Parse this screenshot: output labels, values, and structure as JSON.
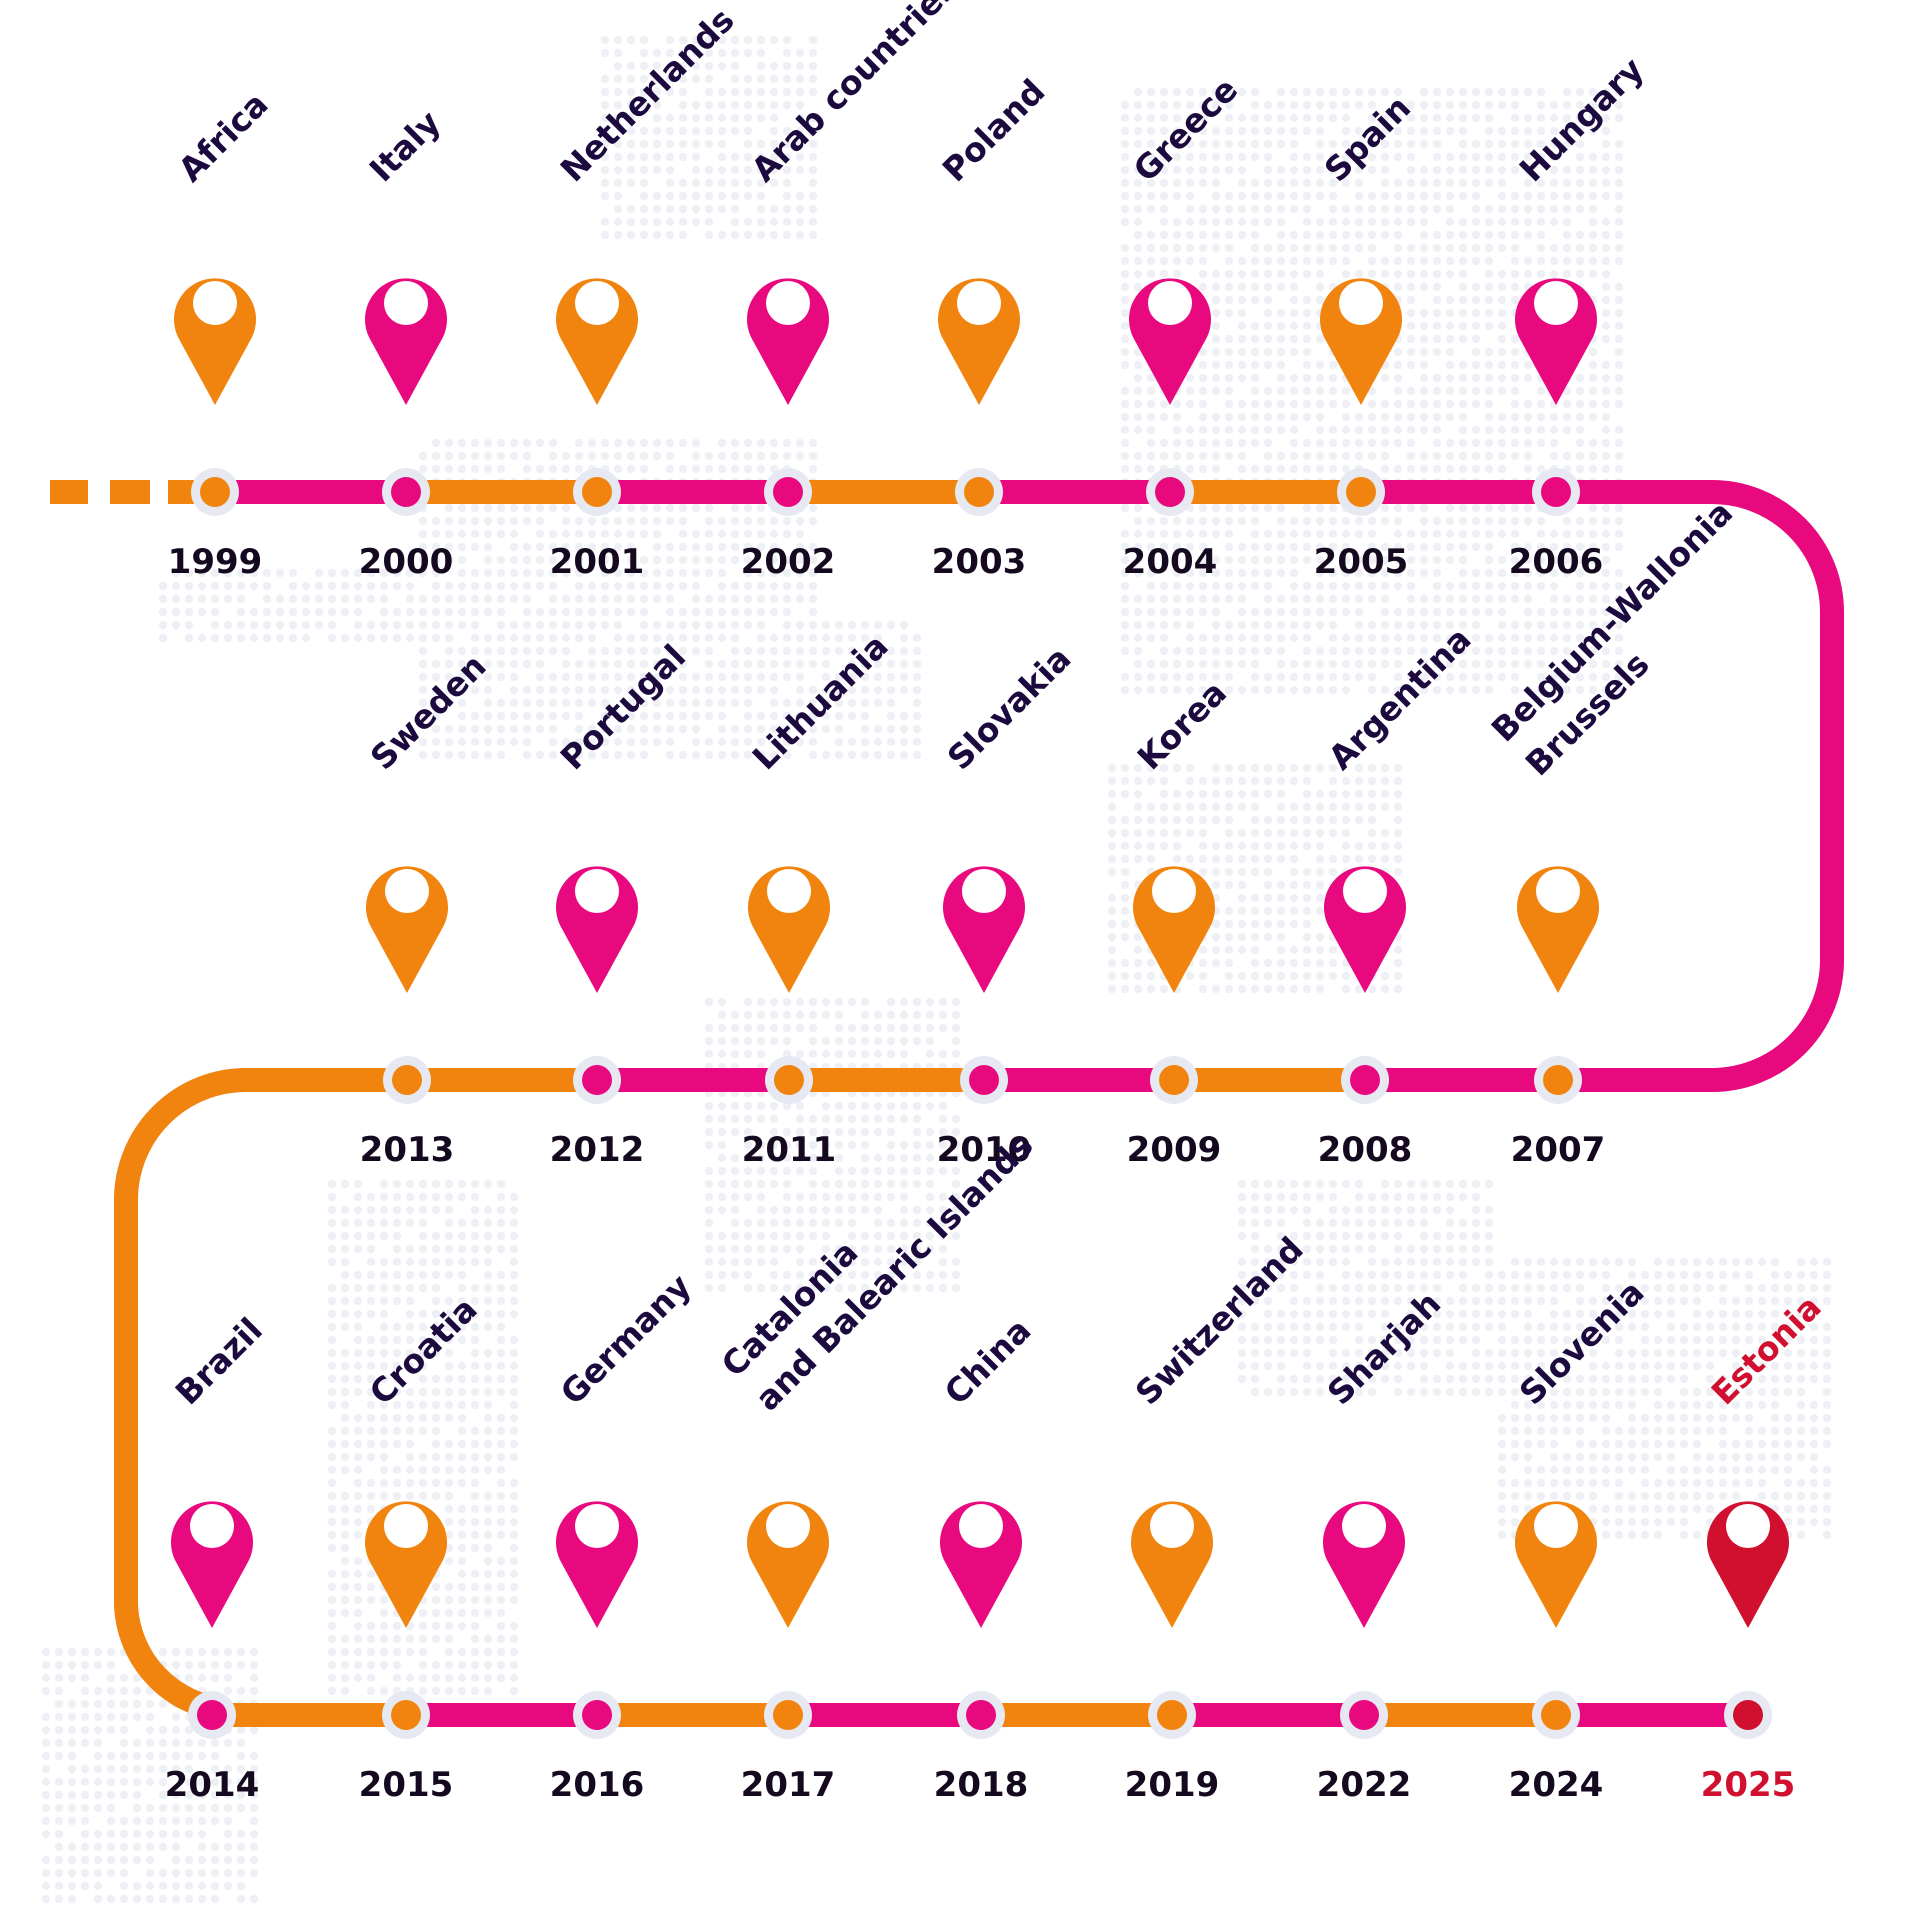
{
  "colors": {
    "orange": "#f0840e",
    "magenta": "#e8097e",
    "red": "#d0102e",
    "node_ring": "#e6e9f2",
    "dots": "#eef0f6",
    "text": "#1c0a3f"
  },
  "timeline": [
    {
      "year": "1999",
      "country": [
        "Africa"
      ],
      "color": "orange"
    },
    {
      "year": "2000",
      "country": [
        "Italy"
      ],
      "color": "magenta"
    },
    {
      "year": "2001",
      "country": [
        "Netherlands"
      ],
      "color": "orange"
    },
    {
      "year": "2002",
      "country": [
        "Arab countries"
      ],
      "color": "magenta"
    },
    {
      "year": "2003",
      "country": [
        "Poland"
      ],
      "color": "orange"
    },
    {
      "year": "2004",
      "country": [
        "Greece"
      ],
      "color": "magenta"
    },
    {
      "year": "2005",
      "country": [
        "Spain"
      ],
      "color": "orange"
    },
    {
      "year": "2006",
      "country": [
        "Hungary"
      ],
      "color": "magenta"
    },
    {
      "year": "2007",
      "country": [
        "Belgium-Wallonia",
        "Brussels"
      ],
      "color": "orange"
    },
    {
      "year": "2008",
      "country": [
        "Argentina"
      ],
      "color": "magenta"
    },
    {
      "year": "2009",
      "country": [
        "Korea"
      ],
      "color": "orange"
    },
    {
      "year": "2010",
      "country": [
        "Slovakia"
      ],
      "color": "magenta"
    },
    {
      "year": "2011",
      "country": [
        "Lithuania"
      ],
      "color": "orange"
    },
    {
      "year": "2012",
      "country": [
        "Portugal"
      ],
      "color": "magenta"
    },
    {
      "year": "2013",
      "country": [
        "Sweden"
      ],
      "color": "orange"
    },
    {
      "year": "2014",
      "country": [
        "Brazil"
      ],
      "color": "magenta"
    },
    {
      "year": "2015",
      "country": [
        "Croatia"
      ],
      "color": "orange"
    },
    {
      "year": "2016",
      "country": [
        "Germany"
      ],
      "color": "magenta"
    },
    {
      "year": "2017",
      "country": [
        "Catalonia",
        "and Balearic Islands"
      ],
      "color": "orange"
    },
    {
      "year": "2018",
      "country": [
        "China"
      ],
      "color": "magenta"
    },
    {
      "year": "2019",
      "country": [
        "Switzerland"
      ],
      "color": "orange"
    },
    {
      "year": "2022",
      "country": [
        "Sharjah"
      ],
      "color": "magenta"
    },
    {
      "year": "2024",
      "country": [
        "Slovenia"
      ],
      "color": "orange"
    },
    {
      "year": "2025",
      "country": [
        "Estonia"
      ],
      "color": "red",
      "highlight": true
    }
  ]
}
